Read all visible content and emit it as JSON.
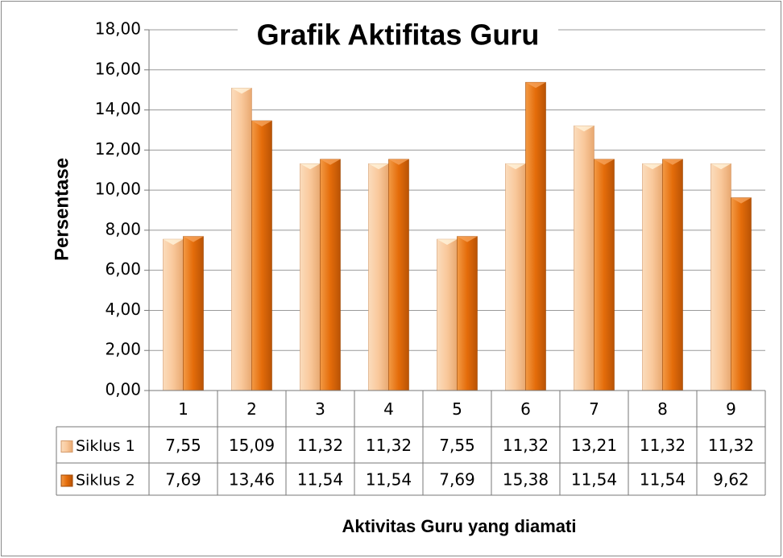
{
  "chart_data": {
    "type": "bar",
    "title": "Grafik Aktifitas Guru",
    "y_axis_label": "Persentase",
    "x_axis_label": "Aktivitas Guru yang diamati",
    "categories": [
      "1",
      "2",
      "3",
      "4",
      "5",
      "6",
      "7",
      "8",
      "9"
    ],
    "series": [
      {
        "name": "Siklus 1",
        "color": "#f9c89b",
        "values": [
          7.55,
          15.09,
          11.32,
          11.32,
          7.55,
          11.32,
          13.21,
          11.32,
          11.32
        ],
        "value_labels": [
          "7,55",
          "15,09",
          "11,32",
          "11,32",
          "7,55",
          "11,32",
          "13,21",
          "11,32",
          "11,32"
        ]
      },
      {
        "name": "Siklus 2",
        "color": "#e46c0a",
        "values": [
          7.69,
          13.46,
          11.54,
          11.54,
          7.69,
          15.38,
          11.54,
          11.54,
          9.62
        ],
        "value_labels": [
          "7,69",
          "13,46",
          "11,54",
          "11,54",
          "7,69",
          "15,38",
          "11,54",
          "11,54",
          "9,62"
        ]
      }
    ],
    "ylim": [
      0,
      18
    ],
    "yticks": [
      {
        "value": 0,
        "label": "0,00"
      },
      {
        "value": 2,
        "label": "2,00"
      },
      {
        "value": 4,
        "label": "4,00"
      },
      {
        "value": 6,
        "label": "6,00"
      },
      {
        "value": 8,
        "label": "8,00"
      },
      {
        "value": 10,
        "label": "10,00"
      },
      {
        "value": 12,
        "label": "12,00"
      },
      {
        "value": 14,
        "label": "14,00"
      },
      {
        "value": 16,
        "label": "16,00"
      },
      {
        "value": 18,
        "label": "18,00"
      }
    ],
    "grid": true,
    "data_table": true
  }
}
